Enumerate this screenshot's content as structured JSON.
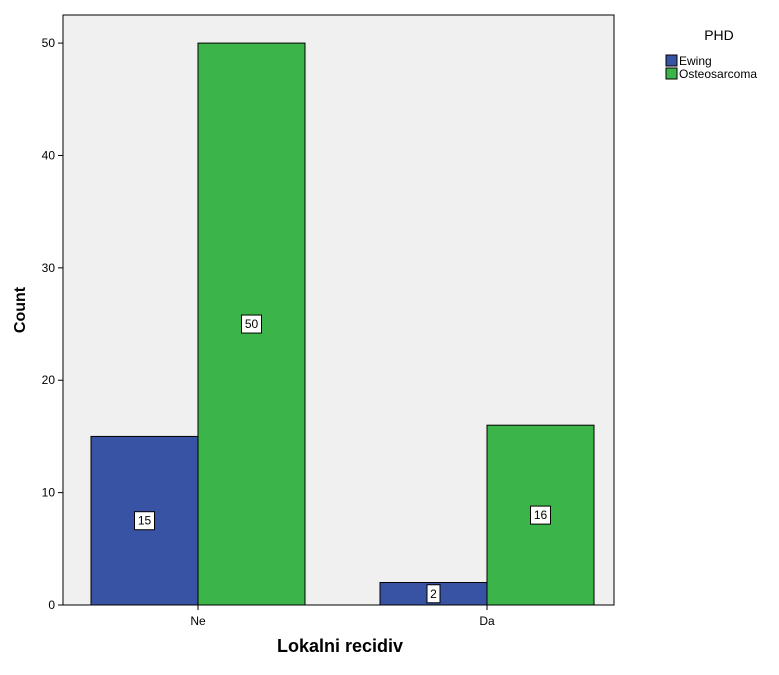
{
  "chart_data": {
    "type": "bar",
    "title": "",
    "xlabel": "Lokalni recidiv",
    "ylabel": "Count",
    "categories": [
      "Ne",
      "Da"
    ],
    "series": [
      {
        "name": "Ewing",
        "values": [
          15,
          2
        ],
        "color": "#3953a4"
      },
      {
        "name": "Osteosarcoma",
        "values": [
          50,
          16
        ],
        "color": "#3bb44a"
      }
    ],
    "data_labels": [
      [
        "15",
        "2"
      ],
      [
        "50",
        "16"
      ]
    ],
    "ylim": [
      0,
      52.5
    ],
    "yticks": [
      0,
      10,
      20,
      30,
      40,
      50
    ],
    "ytick_labels": [
      "0",
      "10",
      "20",
      "30",
      "40",
      "50"
    ],
    "grid": false,
    "plot_background": "#f0f0f0",
    "bar_outline": "#000000",
    "legend": {
      "title": "PHD",
      "placement": "top-right outside",
      "entries": [
        "Ewing",
        "Osteosarcoma"
      ]
    }
  }
}
